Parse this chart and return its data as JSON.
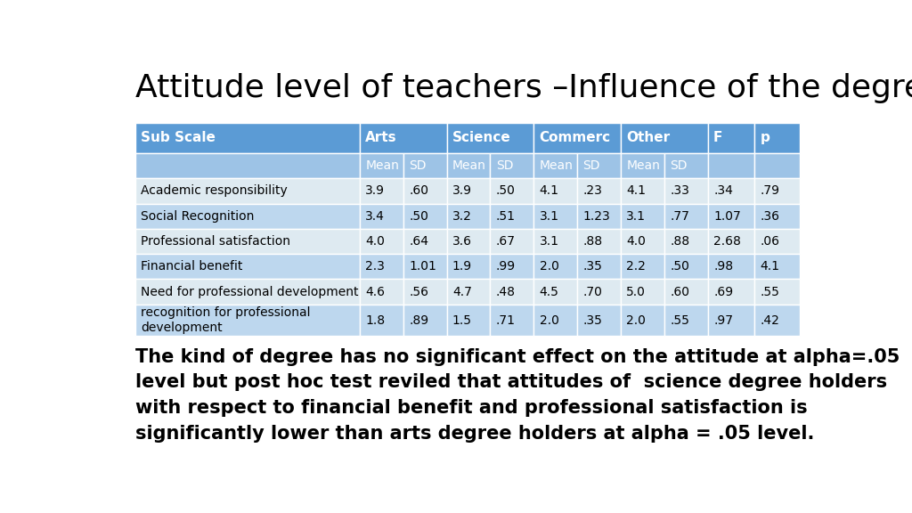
{
  "title": "Attitude level of teachers –Influence of the degree",
  "rows": [
    [
      "Academic responsibility",
      "3.9",
      ".60",
      "3.9",
      ".50",
      "4.1",
      ".23",
      "4.1",
      ".33",
      ".34",
      ".79"
    ],
    [
      "Social Recognition",
      "3.4",
      ".50",
      "3.2",
      ".51",
      "3.1",
      "1.23",
      "3.1",
      ".77",
      "1.07",
      ".36"
    ],
    [
      "Professional satisfaction",
      "4.0",
      ".64",
      "3.6",
      ".67",
      "3.1",
      ".88",
      "4.0",
      ".88",
      "2.68",
      ".06"
    ],
    [
      "Financial benefit",
      "2.3",
      "1.01",
      "1.9",
      ".99",
      "2.0",
      ".35",
      "2.2",
      ".50",
      ".98",
      "4.1"
    ],
    [
      "Need for professional development",
      "4.6",
      ".56",
      "4.7",
      ".48",
      "4.5",
      ".70",
      "5.0",
      ".60",
      ".69",
      ".55"
    ],
    [
      "recognition for professional\ndevelopment",
      "1.8",
      ".89",
      "1.5",
      ".71",
      "2.0",
      ".35",
      "2.0",
      ".55",
      ".97",
      ".42"
    ]
  ],
  "footer_text": "The kind of degree has no significant effect on the attitude at alpha=.05\nlevel but post hoc test reviled that attitudes of  science degree holders\nwith respect to financial benefit and professional satisfaction is\nsignificantly lower than arts degree holders at alpha = .05 level.",
  "header_bg": "#5b9bd5",
  "subheader_bg": "#9dc3e6",
  "row_odd_bg": "#deeaf1",
  "row_even_bg": "#bdd7ee",
  "header_text_color": "#ffffff",
  "body_text_color": "#000000",
  "background_color": "#ffffff",
  "title_fontsize": 26,
  "header_fontsize": 11,
  "body_fontsize": 10,
  "footer_fontsize": 15
}
